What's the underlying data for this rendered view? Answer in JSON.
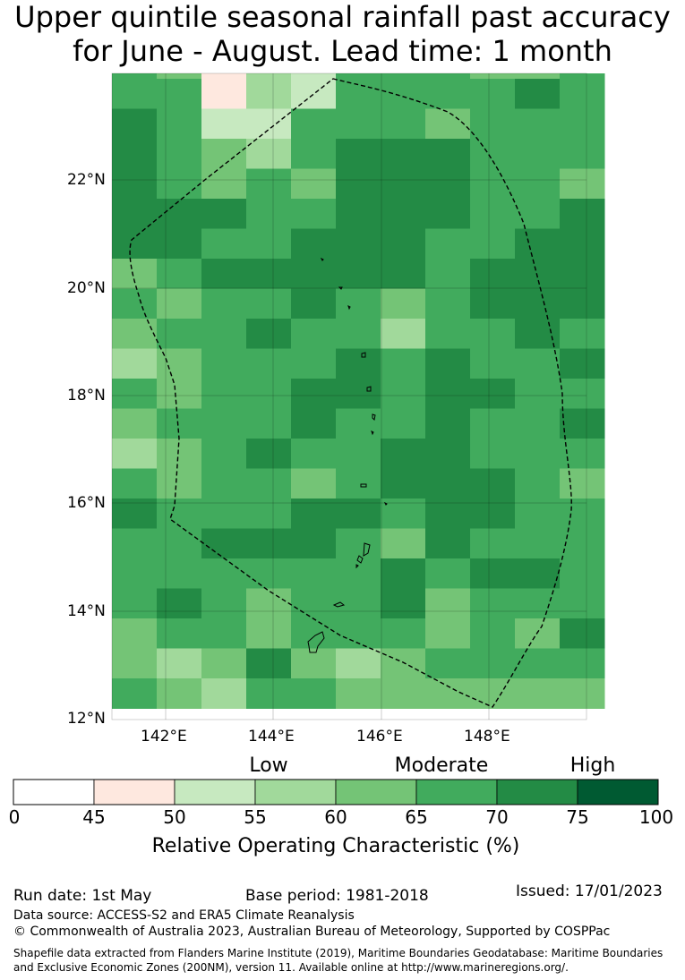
{
  "title": {
    "line1": "Upper quintile seasonal rainfall past accuracy",
    "line2": "for June - August. Lead time: 1 month"
  },
  "map": {
    "lat_labels": [
      "22°N",
      "20°N",
      "18°N",
      "16°N",
      "14°N",
      "12°N"
    ],
    "lon_labels": [
      "142°E",
      "144°E",
      "146°E",
      "148°E"
    ],
    "lon_range": [
      141,
      150
    ],
    "lat_range": [
      12,
      23.96
    ],
    "rows": [
      [
        5,
        4,
        1,
        3,
        2,
        5,
        5,
        5,
        4,
        4,
        5
      ],
      [
        5,
        5,
        1,
        3,
        2,
        5,
        5,
        5,
        5,
        6,
        5
      ],
      [
        6,
        5,
        2,
        2,
        5,
        5,
        5,
        4,
        5,
        5,
        5
      ],
      [
        6,
        5,
        4,
        3,
        5,
        6,
        6,
        6,
        5,
        5,
        5
      ],
      [
        6,
        5,
        4,
        5,
        4,
        6,
        6,
        6,
        5,
        5,
        4
      ],
      [
        6,
        6,
        6,
        5,
        5,
        6,
        6,
        6,
        5,
        5,
        6
      ],
      [
        6,
        6,
        5,
        5,
        6,
        6,
        6,
        5,
        5,
        6,
        6
      ],
      [
        4,
        5,
        6,
        6,
        6,
        6,
        6,
        5,
        6,
        6,
        6
      ],
      [
        5,
        4,
        5,
        5,
        6,
        5,
        4,
        5,
        6,
        6,
        6
      ],
      [
        4,
        5,
        5,
        6,
        5,
        5,
        3,
        5,
        5,
        6,
        5
      ],
      [
        3,
        4,
        5,
        5,
        5,
        6,
        5,
        6,
        5,
        5,
        6
      ],
      [
        5,
        4,
        5,
        5,
        6,
        6,
        5,
        6,
        6,
        5,
        5
      ],
      [
        4,
        5,
        5,
        5,
        6,
        5,
        5,
        6,
        5,
        5,
        6
      ],
      [
        3,
        4,
        5,
        6,
        5,
        5,
        6,
        6,
        5,
        5,
        5
      ],
      [
        5,
        4,
        5,
        5,
        4,
        5,
        6,
        6,
        6,
        5,
        4
      ],
      [
        6,
        5,
        5,
        5,
        6,
        6,
        5,
        6,
        6,
        5,
        5
      ],
      [
        5,
        5,
        6,
        6,
        6,
        5,
        4,
        6,
        5,
        5,
        5
      ],
      [
        5,
        5,
        5,
        5,
        5,
        5,
        6,
        5,
        6,
        6,
        5
      ],
      [
        5,
        6,
        5,
        4,
        5,
        5,
        6,
        4,
        5,
        5,
        5
      ],
      [
        4,
        5,
        5,
        4,
        5,
        5,
        5,
        4,
        5,
        4,
        6
      ],
      [
        4,
        3,
        4,
        6,
        4,
        3,
        4,
        5,
        5,
        5,
        5
      ],
      [
        5,
        4,
        3,
        5,
        5,
        4,
        4,
        4,
        4,
        4,
        4
      ]
    ]
  },
  "colorbar": {
    "categories": [
      "Low",
      "Moderate",
      "High"
    ],
    "ticks": [
      "0",
      "45",
      "50",
      "55",
      "60",
      "65",
      "70",
      "75",
      "100"
    ],
    "colors": [
      "#ffffff",
      "#fee8df",
      "#c7e9c0",
      "#a1d99b",
      "#74c476",
      "#41ab5d",
      "#238b45",
      "#005a32"
    ],
    "label": "Relative Operating Characteristic (%)"
  },
  "footer": {
    "run_date": "Run date: 1st May",
    "base_period": "Base period: 1981-2018",
    "issued": "Issued: 17/01/2023",
    "data_source": "Data source: ACCESS-S2 and ERA5 Climate Reanalysis",
    "copyright": "© Commonwealth of Australia 2023, Australian Bureau of Meteorology, Supported by COSPPac",
    "shapefile_line1": "Shapefile data extracted from Flanders Marine Institute (2019), Maritime Boundaries Geodatabase: Maritime Boundaries",
    "shapefile_line2": "and Exclusive Economic Zones (200NM), version 11. Available online at http://www.marineregions.org/."
  }
}
